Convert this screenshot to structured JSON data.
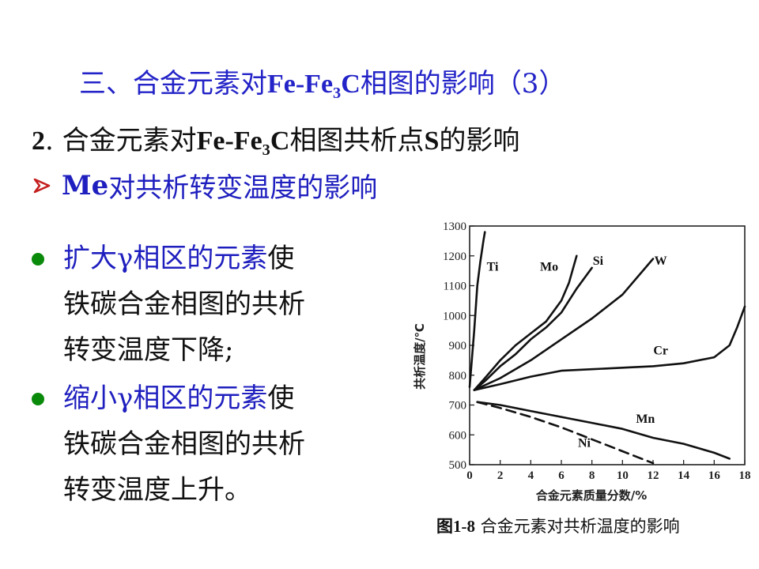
{
  "slide": {
    "title_prefix": "三、合金元素对",
    "title_formula_a": "Fe-Fe",
    "title_formula_sub": "3",
    "title_formula_b": "C",
    "title_suffix": "相图的影响（3）",
    "subtitle_num": "2",
    "subtitle_dot": ". ",
    "subtitle_prefix": "合金元素对",
    "subtitle_formula_a": "Fe-Fe",
    "subtitle_formula_sub": "3",
    "subtitle_formula_b": "C",
    "subtitle_mid": "相图共析点",
    "subtitle_s": "S",
    "subtitle_suffix": "的影响",
    "point_me": "Me",
    "point_text": "对共析转变温度的影响",
    "bullet1_highlight": "扩大γ相区的元素",
    "bullet1_line1_rest": "使",
    "bullet1_line2": "铁碳合金相图的共析",
    "bullet1_line3": "转变温度下降;",
    "bullet2_highlight": "缩小γ相区的元素",
    "bullet2_line1_rest": "使",
    "bullet2_line2": "铁碳合金相图的共析",
    "bullet2_line3": "转变温度上升。",
    "caption_fig": "图1-8",
    "caption_text": " 合金元素对共析温度的影响"
  },
  "chart_data": {
    "type": "line",
    "xlabel": "合金元素质量分数/%",
    "ylabel": "共析温度/℃",
    "xlim": [
      0,
      18
    ],
    "ylim": [
      500,
      1300
    ],
    "xticks": [
      0,
      2,
      4,
      6,
      8,
      10,
      12,
      14,
      16,
      18
    ],
    "yticks": [
      500,
      600,
      700,
      800,
      900,
      1000,
      1100,
      1200,
      1300
    ],
    "series": [
      {
        "name": "Ti",
        "dashed": false,
        "x": [
          0.0,
          0.3,
          0.5,
          0.7,
          0.9,
          1.0
        ],
        "y": [
          760,
          950,
          1100,
          1180,
          1250,
          1280
        ]
      },
      {
        "name": "Mo",
        "dashed": false,
        "x": [
          0.3,
          1,
          2,
          3,
          4,
          5,
          6,
          6.5,
          7
        ],
        "y": [
          750,
          790,
          850,
          900,
          940,
          980,
          1050,
          1110,
          1200
        ]
      },
      {
        "name": "Si",
        "dashed": false,
        "x": [
          0.3,
          1,
          2,
          3,
          4,
          5,
          6,
          7,
          8
        ],
        "y": [
          750,
          780,
          830,
          870,
          920,
          960,
          1010,
          1090,
          1160
        ]
      },
      {
        "name": "W",
        "dashed": false,
        "x": [
          0.3,
          2,
          4,
          6,
          8,
          10,
          12
        ],
        "y": [
          750,
          790,
          850,
          920,
          990,
          1070,
          1190
        ]
      },
      {
        "name": "Cr",
        "dashed": false,
        "x": [
          0.3,
          2,
          4,
          6,
          8,
          10,
          12,
          14,
          16,
          17,
          17.5,
          18
        ],
        "y": [
          750,
          770,
          795,
          815,
          820,
          825,
          830,
          840,
          860,
          900,
          960,
          1030
        ]
      },
      {
        "name": "Mn",
        "dashed": false,
        "x": [
          0.5,
          2,
          4,
          6,
          8,
          10,
          12,
          14,
          16,
          17
        ],
        "y": [
          710,
          700,
          680,
          660,
          640,
          620,
          590,
          570,
          540,
          520
        ]
      },
      {
        "name": "Ni",
        "dashed": true,
        "x": [
          0.5,
          2,
          4,
          6,
          8,
          10,
          12
        ],
        "y": [
          710,
          690,
          660,
          625,
          585,
          545,
          505
        ]
      }
    ],
    "label_positions": [
      {
        "name": "Ti",
        "x": 1.5,
        "y": 1150
      },
      {
        "name": "Mo",
        "x": 5.2,
        "y": 1150
      },
      {
        "name": "Si",
        "x": 8.4,
        "y": 1170
      },
      {
        "name": "W",
        "x": 12.5,
        "y": 1170
      },
      {
        "name": "Cr",
        "x": 12.5,
        "y": 870
      },
      {
        "name": "Mn",
        "x": 11.5,
        "y": 640
      },
      {
        "name": "Ni",
        "x": 7.5,
        "y": 560
      }
    ]
  }
}
